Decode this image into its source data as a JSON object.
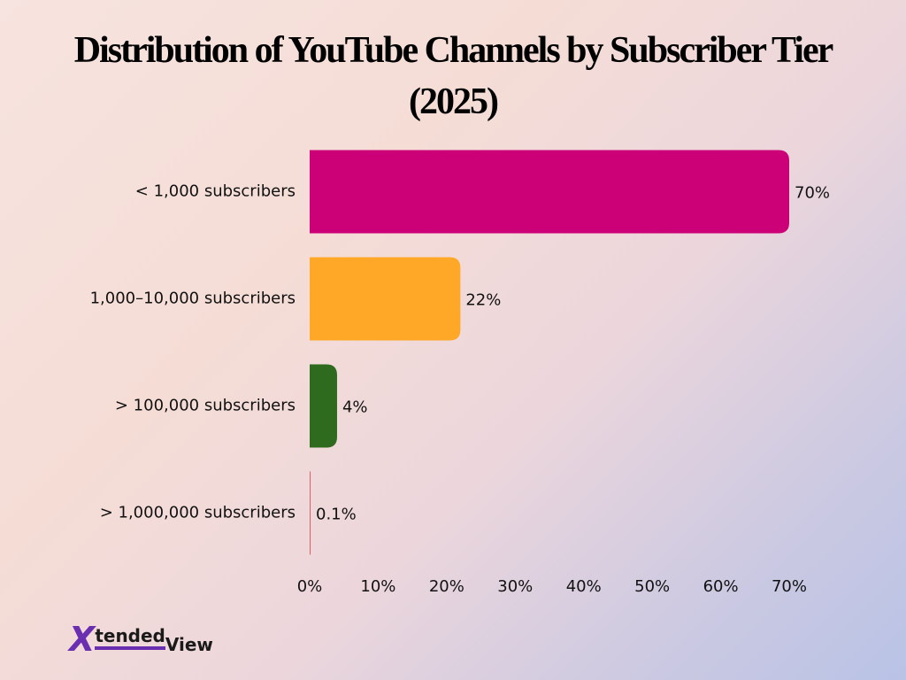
{
  "chart_data": {
    "type": "bar",
    "orientation": "horizontal",
    "title": "Distribution of YouTube Channels by Subscriber Tier (2025)",
    "categories": [
      "< 1,000 subscribers",
      "1,000–10,000 subscribers",
      "> 100,000 subscribers",
      "> 1,000,000 subscribers"
    ],
    "values": [
      70,
      22,
      4,
      0.1
    ],
    "value_labels": [
      "70%",
      "22%",
      "4%",
      "0.1%"
    ],
    "colors": [
      "#cc0077",
      "#ffa726",
      "#2e6b1f",
      "#e06060"
    ],
    "xlim": [
      0,
      70
    ],
    "xticks": [
      {
        "value": 0,
        "label": "0%"
      },
      {
        "value": 10,
        "label": "10%"
      },
      {
        "value": 20,
        "label": "20%"
      },
      {
        "value": 30,
        "label": "30%"
      },
      {
        "value": 40,
        "label": "40%"
      },
      {
        "value": 50,
        "label": "50%"
      },
      {
        "value": 60,
        "label": "60%"
      },
      {
        "value": 70,
        "label": "70%"
      }
    ],
    "grid": false
  },
  "logo": {
    "mark": "X",
    "text1": "tended",
    "text2": "View"
  }
}
